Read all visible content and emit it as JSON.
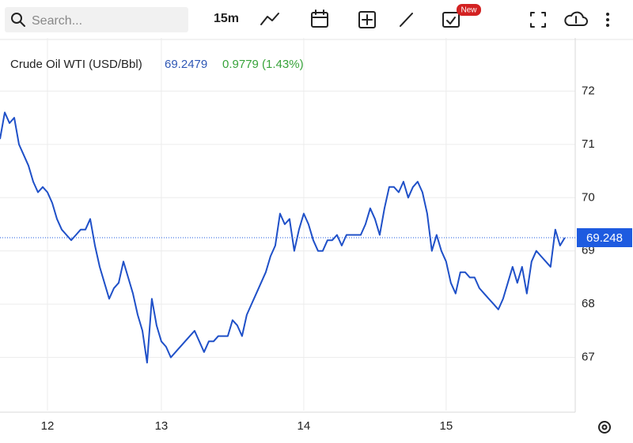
{
  "toolbar": {
    "search_placeholder": "Search...",
    "interval": "15m",
    "badge": "New"
  },
  "chart_data": {
    "type": "line",
    "title": "Crude Oil WTI (USD/Bbl)",
    "last": 69.2479,
    "change": "0.9779 (1.43%)",
    "x": [
      0,
      1,
      2,
      3,
      4,
      5,
      6,
      7,
      8,
      9,
      10,
      11,
      12,
      13,
      14,
      15,
      16,
      17,
      18,
      19,
      20,
      21,
      22,
      23,
      24,
      25,
      26,
      27,
      28,
      29,
      30,
      31,
      32,
      33,
      34,
      35,
      36,
      37,
      38,
      39,
      40,
      41,
      42,
      43,
      44,
      45,
      46,
      47,
      48,
      49,
      50,
      51,
      52,
      53,
      54,
      55,
      56,
      57,
      58,
      59,
      60,
      61,
      62,
      63,
      64,
      65,
      66,
      67,
      68,
      69,
      70,
      71,
      72,
      73,
      74,
      75,
      76,
      77,
      78,
      79,
      80,
      81,
      82,
      83,
      84,
      85,
      86,
      87,
      88,
      89,
      90,
      91,
      92,
      93,
      94,
      95,
      96,
      97,
      98,
      99,
      100,
      101,
      102,
      103,
      104,
      105,
      106,
      107,
      108,
      109,
      110,
      111,
      112,
      113,
      114,
      115,
      116,
      117,
      118,
      119
    ],
    "series": [
      {
        "name": "Crude Oil WTI",
        "color": "#1f50c8",
        "values": [
          71.1,
          71.6,
          71.4,
          71.5,
          71.0,
          70.8,
          70.6,
          70.3,
          70.1,
          70.2,
          70.1,
          69.9,
          69.6,
          69.4,
          69.3,
          69.2,
          69.3,
          69.4,
          69.4,
          69.6,
          69.1,
          68.7,
          68.4,
          68.1,
          68.3,
          68.4,
          68.8,
          68.5,
          68.2,
          67.8,
          67.5,
          66.9,
          68.1,
          67.6,
          67.3,
          67.2,
          67.0,
          67.1,
          67.2,
          67.3,
          67.4,
          67.5,
          67.3,
          67.1,
          67.3,
          67.3,
          67.4,
          67.4,
          67.4,
          67.7,
          67.6,
          67.4,
          67.8,
          68.0,
          68.2,
          68.4,
          68.6,
          68.9,
          69.1,
          69.7,
          69.5,
          69.6,
          69.0,
          69.4,
          69.7,
          69.5,
          69.2,
          69.0,
          69.0,
          69.2,
          69.2,
          69.3,
          69.1,
          69.3,
          69.3,
          69.3,
          69.3,
          69.5,
          69.8,
          69.6,
          69.3,
          69.8,
          70.2,
          70.2,
          70.1,
          70.3,
          70.0,
          70.2,
          70.3,
          70.1,
          69.7,
          69.0,
          69.3,
          69.0,
          68.8,
          68.4,
          68.2,
          68.6,
          68.6,
          68.5,
          68.5,
          68.3,
          68.2,
          68.1,
          68.0,
          67.9,
          68.1,
          68.4,
          68.7,
          68.4,
          68.7,
          68.2,
          68.8,
          69.0,
          68.9,
          68.8,
          68.7,
          69.4,
          69.1,
          69.2479
        ]
      }
    ],
    "xlim": [
      0,
      121.2
    ],
    "xticks": [
      {
        "value": 10,
        "label": "12"
      },
      {
        "value": 34,
        "label": "13"
      },
      {
        "value": 64,
        "label": "14"
      },
      {
        "value": 94,
        "label": "15"
      }
    ],
    "ylim": [
      66,
      73
    ],
    "yticks": [
      67,
      68,
      69,
      70,
      71,
      72
    ],
    "grid": true,
    "price_line": {
      "value": 69.2479,
      "label": "69.248",
      "color": "#1e5be0"
    }
  }
}
